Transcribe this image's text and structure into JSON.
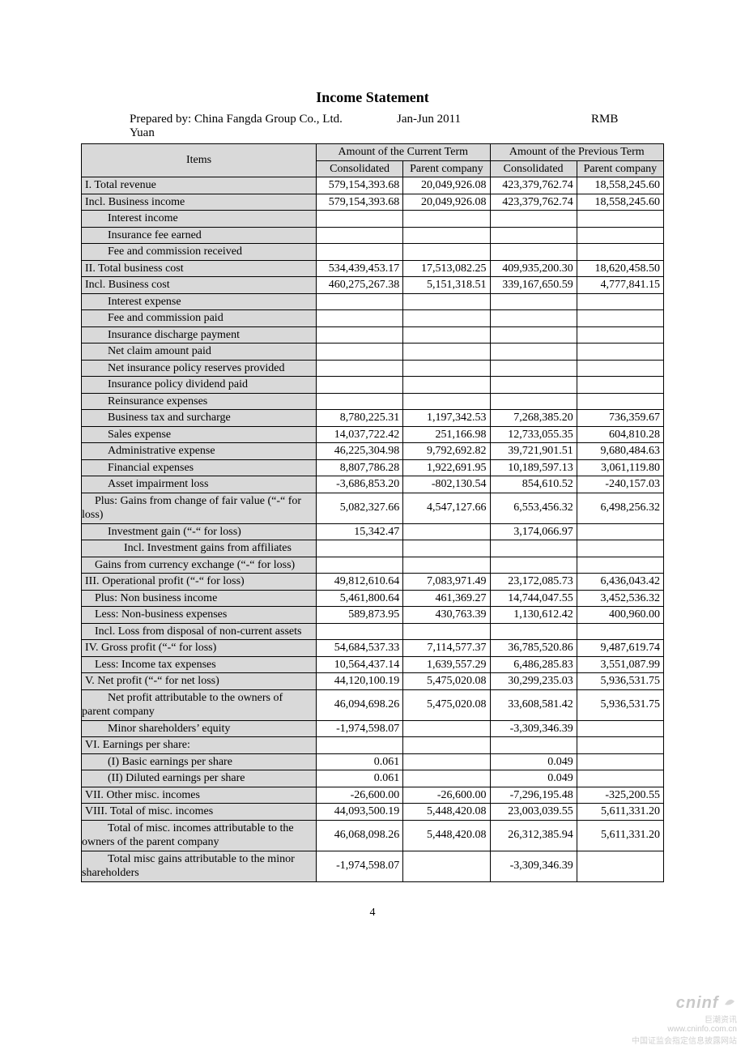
{
  "title": "Income Statement",
  "prepared_by": "Prepared by: China Fangda Group Co., Ltd.",
  "period": "Jan-Jun 2011",
  "currency_label": "RMB",
  "currency_unit": "Yuan",
  "headers": {
    "items": "Items",
    "current": "Amount of the Current Term",
    "previous": "Amount of the Previous Term",
    "consolidated": "Consolidated",
    "parent": "Parent company"
  },
  "rows": [
    {
      "label": "I. Total revenue",
      "indent": 0,
      "cc": "579,154,393.68",
      "cp": "20,049,926.08",
      "pc": "423,379,762.74",
      "pp": "18,558,245.60"
    },
    {
      "label": "Incl. Business income",
      "indent": 0,
      "cc": "579,154,393.68",
      "cp": "20,049,926.08",
      "pc": "423,379,762.74",
      "pp": "18,558,245.60"
    },
    {
      "label": "Interest income",
      "indent": 2,
      "cc": "",
      "cp": "",
      "pc": "",
      "pp": ""
    },
    {
      "label": "Insurance fee earned",
      "indent": 2,
      "cc": "",
      "cp": "",
      "pc": "",
      "pp": ""
    },
    {
      "label": "Fee and commission received",
      "indent": 2,
      "cc": "",
      "cp": "",
      "pc": "",
      "pp": ""
    },
    {
      "label": "II. Total business cost",
      "indent": 0,
      "cc": "534,439,453.17",
      "cp": "17,513,082.25",
      "pc": "409,935,200.30",
      "pp": "18,620,458.50"
    },
    {
      "label": "Incl. Business cost",
      "indent": 0,
      "cc": "460,275,267.38",
      "cp": "5,151,318.51",
      "pc": "339,167,650.59",
      "pp": "4,777,841.15"
    },
    {
      "label": "Interest expense",
      "indent": 2,
      "cc": "",
      "cp": "",
      "pc": "",
      "pp": ""
    },
    {
      "label": "Fee and commission paid",
      "indent": 2,
      "cc": "",
      "cp": "",
      "pc": "",
      "pp": ""
    },
    {
      "label": "Insurance discharge payment",
      "indent": 2,
      "cc": "",
      "cp": "",
      "pc": "",
      "pp": ""
    },
    {
      "label": "Net claim amount paid",
      "indent": 2,
      "cc": "",
      "cp": "",
      "pc": "",
      "pp": ""
    },
    {
      "label": "Net insurance policy reserves provided",
      "indent": 2,
      "hang": true,
      "cc": "",
      "cp": "",
      "pc": "",
      "pp": ""
    },
    {
      "label": "Insurance policy dividend paid",
      "indent": 2,
      "cc": "",
      "cp": "",
      "pc": "",
      "pp": ""
    },
    {
      "label": "Reinsurance expenses",
      "indent": 2,
      "cc": "",
      "cp": "",
      "pc": "",
      "pp": ""
    },
    {
      "label": "Business tax and surcharge",
      "indent": 2,
      "cc": "8,780,225.31",
      "cp": "1,197,342.53",
      "pc": "7,268,385.20",
      "pp": "736,359.67"
    },
    {
      "label": "Sales expense",
      "indent": 2,
      "cc": "14,037,722.42",
      "cp": "251,166.98",
      "pc": "12,733,055.35",
      "pp": "604,810.28"
    },
    {
      "label": "Administrative expense",
      "indent": 2,
      "cc": "46,225,304.98",
      "cp": "9,792,692.82",
      "pc": "39,721,901.51",
      "pp": "9,680,484.63"
    },
    {
      "label": "Financial expenses",
      "indent": 2,
      "cc": "8,807,786.28",
      "cp": "1,922,691.95",
      "pc": "10,189,597.13",
      "pp": "3,061,119.80"
    },
    {
      "label": "Asset impairment loss",
      "indent": 2,
      "cc": "-3,686,853.20",
      "cp": "-802,130.54",
      "pc": "854,610.52",
      "pp": "-240,157.03"
    },
    {
      "label": "Plus: Gains from change of fair value (“-“ for loss)",
      "indent": 1,
      "hang": true,
      "cc": "5,082,327.66",
      "cp": "4,547,127.66",
      "pc": "6,553,456.32",
      "pp": "6,498,256.32"
    },
    {
      "label": "Investment gain (“-“ for loss)",
      "indent": 2,
      "cc": "15,342.47",
      "cp": "",
      "pc": "3,174,066.97",
      "pp": ""
    },
    {
      "label": "Incl. Investment gains from affiliates",
      "indent": 3,
      "hang": true,
      "cc": "",
      "cp": "",
      "pc": "",
      "pp": ""
    },
    {
      "label": "Gains from currency exchange (“-“ for loss)",
      "indent": 1,
      "hang": true,
      "cc": "",
      "cp": "",
      "pc": "",
      "pp": ""
    },
    {
      "label": "III. Operational profit (“-“ for loss)",
      "indent": 0,
      "cc": "49,812,610.64",
      "cp": "7,083,971.49",
      "pc": "23,172,085.73",
      "pp": "6,436,043.42"
    },
    {
      "label": "Plus: Non business income",
      "indent": 1,
      "cc": "5,461,800.64",
      "cp": "461,369.27",
      "pc": "14,744,047.55",
      "pp": "3,452,536.32"
    },
    {
      "label": "Less: Non-business expenses",
      "indent": 1,
      "cc": "589,873.95",
      "cp": "430,763.39",
      "pc": "1,130,612.42",
      "pp": "400,960.00"
    },
    {
      "label": "Incl. Loss from disposal of non-current assets",
      "indent": 1,
      "hang": true,
      "cc": "",
      "cp": "",
      "pc": "",
      "pp": ""
    },
    {
      "label": "IV. Gross profit (“-“ for loss)",
      "indent": 0,
      "cc": "54,684,537.33",
      "cp": "7,114,577.37",
      "pc": "36,785,520.86",
      "pp": "9,487,619.74"
    },
    {
      "label": "Less: Income tax expenses",
      "indent": 1,
      "cc": "10,564,437.14",
      "cp": "1,639,557.29",
      "pc": "6,486,285.83",
      "pp": "3,551,087.99"
    },
    {
      "label": "V. Net profit (“-“ for net loss)",
      "indent": 0,
      "cc": "44,120,100.19",
      "cp": "5,475,020.08",
      "pc": "30,299,235.03",
      "pp": "5,936,531.75"
    },
    {
      "label": "Net profit attributable to the owners of parent company",
      "indent": 2,
      "hang": true,
      "cc": "46,094,698.26",
      "cp": "5,475,020.08",
      "pc": "33,608,581.42",
      "pp": "5,936,531.75"
    },
    {
      "label": "Minor shareholders’ equity",
      "indent": 2,
      "cc": "-1,974,598.07",
      "cp": "",
      "pc": "-3,309,346.39",
      "pp": ""
    },
    {
      "label": "VI. Earnings per share:",
      "indent": 0,
      "cc": "",
      "cp": "",
      "pc": "",
      "pp": ""
    },
    {
      "label": "(I) Basic earnings per share",
      "indent": 2,
      "cc": "0.061",
      "cp": "",
      "pc": "0.049",
      "pp": ""
    },
    {
      "label": "(II) Diluted earnings per share",
      "indent": 2,
      "cc": "0.061",
      "cp": "",
      "pc": "0.049",
      "pp": ""
    },
    {
      "label": "VII. Other misc. incomes",
      "indent": 0,
      "cc": "-26,600.00",
      "cp": "-26,600.00",
      "pc": "-7,296,195.48",
      "pp": "-325,200.55"
    },
    {
      "label": "VIII. Total of misc. incomes",
      "indent": 0,
      "cc": "44,093,500.19",
      "cp": "5,448,420.08",
      "pc": "23,003,039.55",
      "pp": "5,611,331.20"
    },
    {
      "label": "Total of misc. incomes attributable to the owners of the parent company",
      "indent": 2,
      "hang": true,
      "cc": "46,068,098.26",
      "cp": "5,448,420.08",
      "pc": "26,312,385.94",
      "pp": "5,611,331.20"
    },
    {
      "label": "Total misc gains attributable to the minor shareholders",
      "indent": 2,
      "hang": true,
      "cc": "-1,974,598.07",
      "cp": "",
      "pc": "-3,309,346.39",
      "pp": ""
    }
  ],
  "page_number": "4",
  "watermark": {
    "brand": "cninf",
    "url": "www.cninfo.com.cn",
    "cn": "中国证监会指定信息披露网站",
    "tag": "巨潮资讯"
  }
}
